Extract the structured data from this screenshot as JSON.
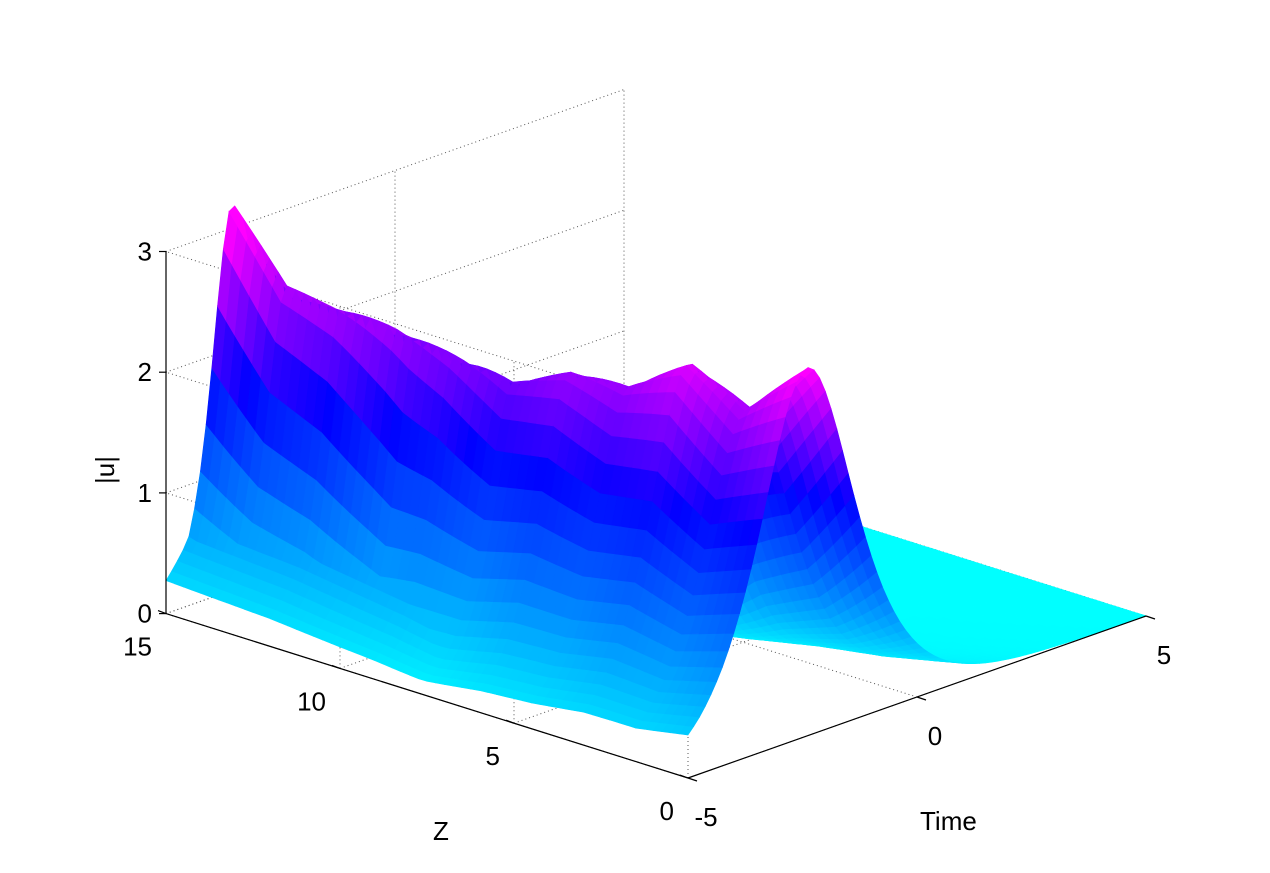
{
  "chart_data": {
    "type": "surface",
    "xlabel": "Time",
    "ylabel": "Z",
    "zlabel": "|u|",
    "xlim": [
      -5,
      5
    ],
    "ylim": [
      0,
      15
    ],
    "zlim": [
      0,
      3
    ],
    "x_ticks": [
      "-5",
      "0",
      "5"
    ],
    "y_ticks": [
      "0",
      "5",
      "10",
      "15"
    ],
    "z_ticks": [
      "0",
      "1",
      "2",
      "3"
    ],
    "x_tick_values": [
      -5,
      0,
      5
    ],
    "y_tick_values": [
      0,
      5,
      10,
      15
    ],
    "z_tick_values": [
      0,
      1,
      2,
      3
    ],
    "grid": true,
    "colormap": [
      "#00ffff",
      "#0000ff",
      "#ff00ff"
    ],
    "surface_description_values": {
      "z_samples": [
        0,
        1.5,
        3,
        4.5,
        6,
        7.5,
        9,
        10.5,
        12,
        13.5,
        15
      ],
      "peak_amplitude": [
        3.05,
        2.6,
        2.85,
        2.55,
        2.55,
        2.35,
        2.45,
        2.55,
        2.6,
        2.65,
        3.2
      ],
      "peak_time": [
        -2.4,
        -2.55,
        -2.7,
        -2.85,
        -3.0,
        -3.1,
        -3.25,
        -3.35,
        -3.45,
        -3.5,
        -3.55
      ],
      "initial_pulse_width": 1.0
    }
  }
}
